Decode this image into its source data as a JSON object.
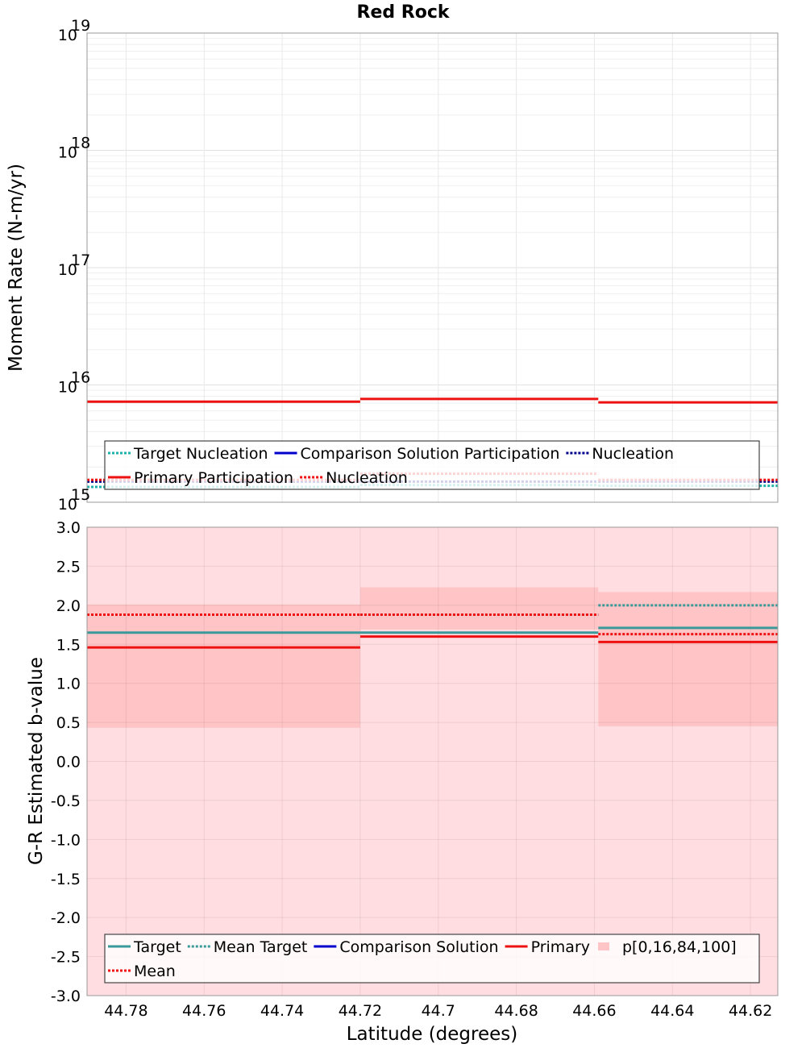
{
  "chart_data": [
    {
      "type": "line",
      "title": "Red Rock",
      "xlabel": "",
      "ylabel": "Moment Rate (N-m/yr)",
      "yscale": "log",
      "ylim_exponents": [
        15,
        19
      ],
      "y_tick_base": "10",
      "y_tick_exponents": [
        "15",
        "16",
        "17",
        "18",
        "19"
      ],
      "xlim": [
        44.79,
        44.613
      ],
      "x_bins": [
        [
          44.79,
          44.72
        ],
        [
          44.72,
          44.659
        ],
        [
          44.659,
          44.613
        ]
      ],
      "series": [
        {
          "name": "Target Nucleation",
          "style": "dotted",
          "color": "#20b2aa",
          "values": [
            1350000000000000.0,
            1400000000000000.0,
            1380000000000000.0
          ]
        },
        {
          "name": "Comparison Solution Participation",
          "style": "solid",
          "color": "#0000cc",
          "values": [
            null,
            null,
            null
          ]
        },
        {
          "name": "Nucleation",
          "style": "dotted",
          "color": "#00008b",
          "values": [
            1500000000000000.0,
            1500000000000000.0,
            1500000000000000.0
          ]
        },
        {
          "name": "Primary Participation",
          "style": "solid",
          "color": "#ee1111",
          "values": [
            7200000000000000.0,
            7600000000000000.0,
            7100000000000000.0
          ]
        },
        {
          "name": "Nucleation",
          "style": "dotted",
          "color": "#ee1111",
          "values": [
            1550000000000000.0,
            1750000000000000.0,
            1550000000000000.0
          ]
        }
      ],
      "legend": {
        "position": "bottom",
        "row1": [
          "Target Nucleation",
          "Comparison Solution Participation",
          "Nucleation"
        ],
        "row2": [
          "Primary Participation",
          "Nucleation"
        ]
      }
    },
    {
      "type": "line",
      "title": "",
      "xlabel": "Latitude (degrees)",
      "ylabel": "G-R Estimated b-value",
      "ylim": [
        -3.0,
        3.0
      ],
      "y_ticks": [
        "3.0",
        "2.5",
        "2.0",
        "1.5",
        "1.0",
        "0.5",
        "0.0",
        "-0.5",
        "-1.0",
        "-1.5",
        "-2.0",
        "-2.5",
        "-3.0"
      ],
      "xlim": [
        44.79,
        44.613
      ],
      "x_ticks": [
        "44.78",
        "44.76",
        "44.74",
        "44.72",
        "44.7",
        "44.68",
        "44.66",
        "44.64",
        "44.62"
      ],
      "x_bins": [
        [
          44.79,
          44.72
        ],
        [
          44.72,
          44.659
        ],
        [
          44.659,
          44.613
        ]
      ],
      "series": [
        {
          "name": "Target",
          "style": "solid",
          "color": "#3a9a9a",
          "values": [
            1.65,
            1.65,
            1.71
          ]
        },
        {
          "name": "Mean Target",
          "style": "dotted",
          "color": "#3a9a9a",
          "values": [
            1.88,
            1.88,
            2.0
          ]
        },
        {
          "name": "Comparison Solution",
          "style": "solid",
          "color": "#0000cc",
          "values": [
            null,
            null,
            null
          ]
        },
        {
          "name": "Primary",
          "style": "solid",
          "color": "#ee1111",
          "values": [
            1.46,
            1.6,
            1.53
          ]
        },
        {
          "name": "Mean",
          "style": "dotted",
          "color": "#ee1111",
          "values": [
            1.88,
            1.88,
            1.63
          ]
        }
      ],
      "bands": {
        "name": "p[0,16,84,100]",
        "color": "#ffb0b4",
        "outer": [
          [
            -3.0,
            3.0
          ],
          [
            -3.0,
            3.0
          ],
          [
            -3.0,
            3.0
          ]
        ],
        "inner": [
          [
            0.43,
            2.01
          ],
          [
            1.69,
            2.23
          ],
          [
            0.45,
            2.17
          ]
        ]
      },
      "legend": {
        "position": "bottom",
        "row1": [
          "Target",
          "Mean Target",
          "Comparison Solution",
          "Primary",
          "p[0,16,84,100]"
        ],
        "row2": [
          "Mean"
        ]
      }
    }
  ]
}
